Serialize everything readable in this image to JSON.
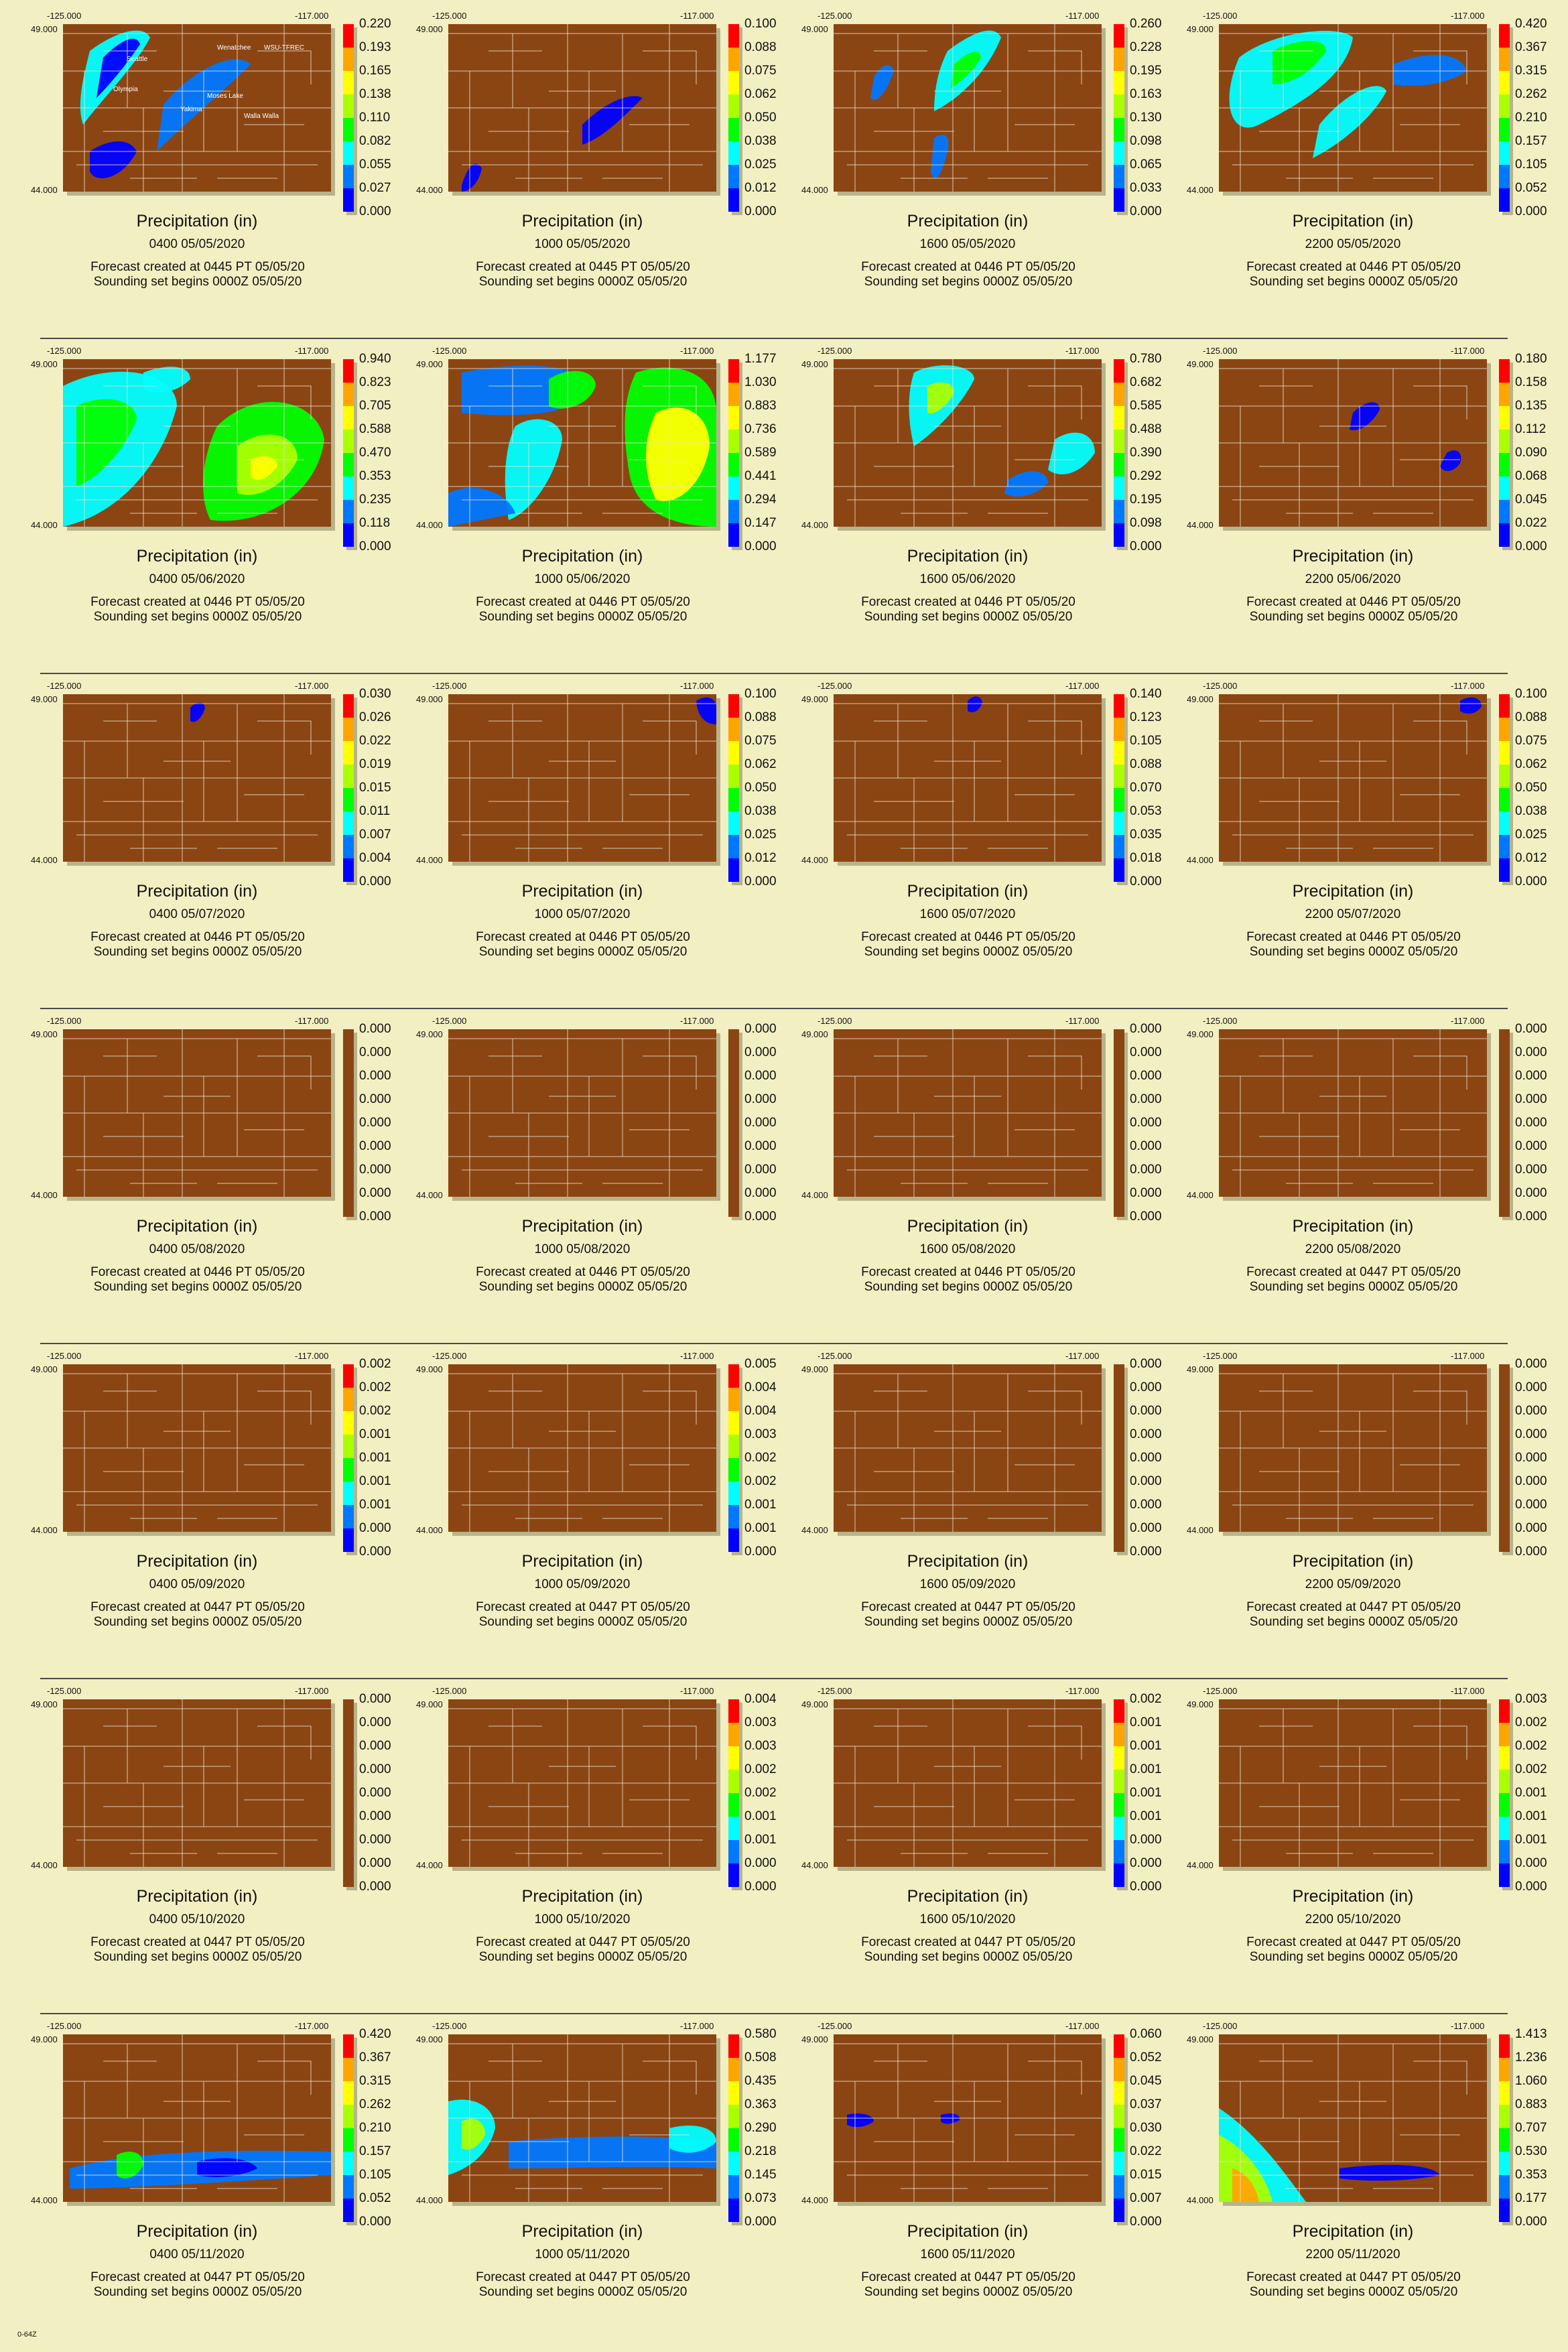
{
  "bounds": {
    "lon_min": "-125.000",
    "lon_max": "-117.000",
    "lat_max": "49.000",
    "lat_min": "44.000"
  },
  "footer": "0-64Z",
  "palette": {
    "background": "#f2efc2",
    "land": "#8b4513",
    "scale": [
      "#6a2a8a",
      "#0000ff",
      "#0078ff",
      "#00ffff",
      "#00ff00",
      "#aaff00",
      "#ffff00",
      "#ffa500",
      "#ff0000"
    ]
  },
  "panels": [
    {
      "title": "Precipitation (in)",
      "valid": "0400   05/05/2020",
      "created": "Forecast  created  at  0445  PT  05/05/20",
      "sounding": "Sounding  set  begins  0000Z  05/05/20",
      "scale": [
        "0.220",
        "0.193",
        "0.165",
        "0.138",
        "0.110",
        "0.082",
        "0.055",
        "0.027",
        "0.000"
      ],
      "place_labels": [
        "Seattle",
        "Olympia",
        "Wenatchee",
        "WSU-TFREC",
        "Moses Lake",
        "Yakima",
        "Walla Walla"
      ]
    },
    {
      "title": "Precipitation (in)",
      "valid": "1000   05/05/2020",
      "created": "Forecast  created  at  0445  PT  05/05/20",
      "sounding": "Sounding  set  begins  0000Z  05/05/20",
      "scale": [
        "0.100",
        "0.088",
        "0.075",
        "0.062",
        "0.050",
        "0.038",
        "0.025",
        "0.012",
        "0.000"
      ]
    },
    {
      "title": "Precipitation (in)",
      "valid": "1600   05/05/2020",
      "created": "Forecast  created  at  0446  PT  05/05/20",
      "sounding": "Sounding  set  begins  0000Z  05/05/20",
      "scale": [
        "0.260",
        "0.228",
        "0.195",
        "0.163",
        "0.130",
        "0.098",
        "0.065",
        "0.033",
        "0.000"
      ]
    },
    {
      "title": "Precipitation (in)",
      "valid": "2200   05/05/2020",
      "created": "Forecast  created  at  0446  PT  05/05/20",
      "sounding": "Sounding  set  begins  0000Z  05/05/20",
      "scale": [
        "0.420",
        "0.367",
        "0.315",
        "0.262",
        "0.210",
        "0.157",
        "0.105",
        "0.052",
        "0.000"
      ]
    },
    {
      "title": "Precipitation (in)",
      "valid": "0400   05/06/2020",
      "created": "Forecast  created  at  0446  PT  05/05/20",
      "sounding": "Sounding  set  begins  0000Z  05/05/20",
      "scale": [
        "0.940",
        "0.823",
        "0.705",
        "0.588",
        "0.470",
        "0.353",
        "0.235",
        "0.118",
        "0.000"
      ]
    },
    {
      "title": "Precipitation (in)",
      "valid": "1000   05/06/2020",
      "created": "Forecast  created  at  0446  PT  05/05/20",
      "sounding": "Sounding  set  begins  0000Z  05/05/20",
      "scale": [
        "1.177",
        "1.030",
        "0.883",
        "0.736",
        "0.589",
        "0.441",
        "0.294",
        "0.147",
        "0.000"
      ]
    },
    {
      "title": "Precipitation (in)",
      "valid": "1600   05/06/2020",
      "created": "Forecast  created  at  0446  PT  05/05/20",
      "sounding": "Sounding  set  begins  0000Z  05/05/20",
      "scale": [
        "0.780",
        "0.682",
        "0.585",
        "0.488",
        "0.390",
        "0.292",
        "0.195",
        "0.098",
        "0.000"
      ]
    },
    {
      "title": "Precipitation (in)",
      "valid": "2200   05/06/2020",
      "created": "Forecast  created  at  0446  PT  05/05/20",
      "sounding": "Sounding  set  begins  0000Z  05/05/20",
      "scale": [
        "0.180",
        "0.158",
        "0.135",
        "0.112",
        "0.090",
        "0.068",
        "0.045",
        "0.022",
        "0.000"
      ]
    },
    {
      "title": "Precipitation (in)",
      "valid": "0400   05/07/2020",
      "created": "Forecast  created  at  0446  PT  05/05/20",
      "sounding": "Sounding  set  begins  0000Z  05/05/20",
      "scale": [
        "0.030",
        "0.026",
        "0.022",
        "0.019",
        "0.015",
        "0.011",
        "0.007",
        "0.004",
        "0.000"
      ]
    },
    {
      "title": "Precipitation (in)",
      "valid": "1000   05/07/2020",
      "created": "Forecast  created  at  0446  PT  05/05/20",
      "sounding": "Sounding  set  begins  0000Z  05/05/20",
      "scale": [
        "0.100",
        "0.088",
        "0.075",
        "0.062",
        "0.050",
        "0.038",
        "0.025",
        "0.012",
        "0.000"
      ]
    },
    {
      "title": "Precipitation (in)",
      "valid": "1600   05/07/2020",
      "created": "Forecast  created  at  0446  PT  05/05/20",
      "sounding": "Sounding  set  begins  0000Z  05/05/20",
      "scale": [
        "0.140",
        "0.123",
        "0.105",
        "0.088",
        "0.070",
        "0.053",
        "0.035",
        "0.018",
        "0.000"
      ]
    },
    {
      "title": "Precipitation (in)",
      "valid": "2200   05/07/2020",
      "created": "Forecast  created  at  0446  PT  05/05/20",
      "sounding": "Sounding  set  begins  0000Z  05/05/20",
      "scale": [
        "0.100",
        "0.088",
        "0.075",
        "0.062",
        "0.050",
        "0.038",
        "0.025",
        "0.012",
        "0.000"
      ]
    },
    {
      "title": "Precipitation (in)",
      "valid": "0400   05/08/2020",
      "created": "Forecast  created  at  0446  PT  05/05/20",
      "sounding": "Sounding  set  begins  0000Z  05/05/20",
      "scale": [
        "0.000",
        "0.000",
        "0.000",
        "0.000",
        "0.000",
        "0.000",
        "0.000",
        "0.000",
        "0.000"
      ]
    },
    {
      "title": "Precipitation (in)",
      "valid": "1000   05/08/2020",
      "created": "Forecast  created  at  0446  PT  05/05/20",
      "sounding": "Sounding  set  begins  0000Z  05/05/20",
      "scale": [
        "0.000",
        "0.000",
        "0.000",
        "0.000",
        "0.000",
        "0.000",
        "0.000",
        "0.000",
        "0.000"
      ]
    },
    {
      "title": "Precipitation (in)",
      "valid": "1600   05/08/2020",
      "created": "Forecast  created  at  0446  PT  05/05/20",
      "sounding": "Sounding  set  begins  0000Z  05/05/20",
      "scale": [
        "0.000",
        "0.000",
        "0.000",
        "0.000",
        "0.000",
        "0.000",
        "0.000",
        "0.000",
        "0.000"
      ]
    },
    {
      "title": "Precipitation (in)",
      "valid": "2200   05/08/2020",
      "created": "Forecast  created  at  0447  PT  05/05/20",
      "sounding": "Sounding  set  begins  0000Z  05/05/20",
      "scale": [
        "0.000",
        "0.000",
        "0.000",
        "0.000",
        "0.000",
        "0.000",
        "0.000",
        "0.000",
        "0.000"
      ]
    },
    {
      "title": "Precipitation (in)",
      "valid": "0400   05/09/2020",
      "created": "Forecast  created  at  0447  PT  05/05/20",
      "sounding": "Sounding  set  begins  0000Z  05/05/20",
      "scale": [
        "0.002",
        "0.002",
        "0.002",
        "0.001",
        "0.001",
        "0.001",
        "0.001",
        "0.000",
        "0.000"
      ]
    },
    {
      "title": "Precipitation (in)",
      "valid": "1000   05/09/2020",
      "created": "Forecast  created  at  0447  PT  05/05/20",
      "sounding": "Sounding  set  begins  0000Z  05/05/20",
      "scale": [
        "0.005",
        "0.004",
        "0.004",
        "0.003",
        "0.002",
        "0.002",
        "0.001",
        "0.001",
        "0.000"
      ]
    },
    {
      "title": "Precipitation (in)",
      "valid": "1600   05/09/2020",
      "created": "Forecast  created  at  0447  PT  05/05/20",
      "sounding": "Sounding  set  begins  0000Z  05/05/20",
      "scale": [
        "0.000",
        "0.000",
        "0.000",
        "0.000",
        "0.000",
        "0.000",
        "0.000",
        "0.000",
        "0.000"
      ]
    },
    {
      "title": "Precipitation (in)",
      "valid": "2200   05/09/2020",
      "created": "Forecast  created  at  0447  PT  05/05/20",
      "sounding": "Sounding  set  begins  0000Z  05/05/20",
      "scale": [
        "0.000",
        "0.000",
        "0.000",
        "0.000",
        "0.000",
        "0.000",
        "0.000",
        "0.000",
        "0.000"
      ]
    },
    {
      "title": "Precipitation (in)",
      "valid": "0400   05/10/2020",
      "created": "Forecast  created  at  0447  PT  05/05/20",
      "sounding": "Sounding  set  begins  0000Z  05/05/20",
      "scale": [
        "0.000",
        "0.000",
        "0.000",
        "0.000",
        "0.000",
        "0.000",
        "0.000",
        "0.000",
        "0.000"
      ]
    },
    {
      "title": "Precipitation (in)",
      "valid": "1000   05/10/2020",
      "created": "Forecast  created  at  0447  PT  05/05/20",
      "sounding": "Sounding  set  begins  0000Z  05/05/20",
      "scale": [
        "0.004",
        "0.003",
        "0.003",
        "0.002",
        "0.002",
        "0.001",
        "0.001",
        "0.000",
        "0.000"
      ]
    },
    {
      "title": "Precipitation (in)",
      "valid": "1600   05/10/2020",
      "created": "Forecast  created  at  0447  PT  05/05/20",
      "sounding": "Sounding  set  begins  0000Z  05/05/20",
      "scale": [
        "0.002",
        "0.001",
        "0.001",
        "0.001",
        "0.001",
        "0.001",
        "0.000",
        "0.000",
        "0.000"
      ]
    },
    {
      "title": "Precipitation (in)",
      "valid": "2200   05/10/2020",
      "created": "Forecast  created  at  0447  PT  05/05/20",
      "sounding": "Sounding  set  begins  0000Z  05/05/20",
      "scale": [
        "0.003",
        "0.002",
        "0.002",
        "0.002",
        "0.001",
        "0.001",
        "0.001",
        "0.000",
        "0.000"
      ]
    },
    {
      "title": "Precipitation (in)",
      "valid": "0400   05/11/2020",
      "created": "Forecast  created  at  0447  PT  05/05/20",
      "sounding": "Sounding  set  begins  0000Z  05/05/20",
      "scale": [
        "0.420",
        "0.367",
        "0.315",
        "0.262",
        "0.210",
        "0.157",
        "0.105",
        "0.052",
        "0.000"
      ]
    },
    {
      "title": "Precipitation (in)",
      "valid": "1000   05/11/2020",
      "created": "Forecast  created  at  0447  PT  05/05/20",
      "sounding": "Sounding  set  begins  0000Z  05/05/20",
      "scale": [
        "0.580",
        "0.508",
        "0.435",
        "0.363",
        "0.290",
        "0.218",
        "0.145",
        "0.073",
        "0.000"
      ]
    },
    {
      "title": "Precipitation (in)",
      "valid": "1600   05/11/2020",
      "created": "Forecast  created  at  0447  PT  05/05/20",
      "sounding": "Sounding  set  begins  0000Z  05/05/20",
      "scale": [
        "0.060",
        "0.052",
        "0.045",
        "0.037",
        "0.030",
        "0.022",
        "0.015",
        "0.007",
        "0.000"
      ]
    },
    {
      "title": "Precipitation (in)",
      "valid": "2200   05/11/2020",
      "created": "Forecast  created  at  0447  PT  05/05/20",
      "sounding": "Sounding  set  begins  0000Z  05/05/20",
      "scale": [
        "1.413",
        "1.236",
        "1.060",
        "0.883",
        "0.707",
        "0.530",
        "0.353",
        "0.177",
        "0.000"
      ]
    }
  ]
}
